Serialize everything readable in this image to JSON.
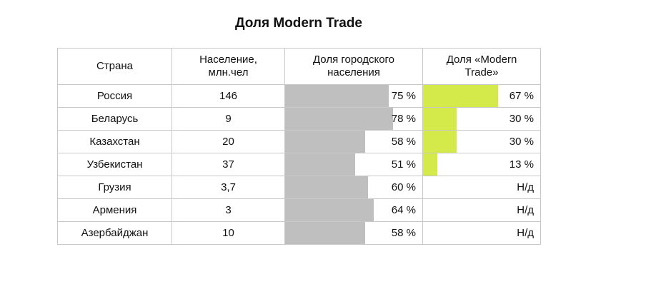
{
  "chart_data": {
    "type": "table",
    "title": "Доля Modern Trade",
    "columns": [
      "Страна",
      "Население, млн.чел",
      "Доля городского населения",
      "Доля «Modern Trade»"
    ],
    "rows": [
      {
        "country": "Россия",
        "population": "146",
        "urban": 75,
        "modern_trade": 67
      },
      {
        "country": "Беларусь",
        "population": "9",
        "urban": 78,
        "modern_trade": 30
      },
      {
        "country": "Казахстан",
        "population": "20",
        "urban": 58,
        "modern_trade": 30
      },
      {
        "country": "Узбекистан",
        "population": "37",
        "urban": 51,
        "modern_trade": 13
      },
      {
        "country": "Грузия",
        "population": "3,7",
        "urban": 60,
        "modern_trade": null
      },
      {
        "country": "Армения",
        "population": "3",
        "urban": 64,
        "modern_trade": null
      },
      {
        "country": "Азербайджан",
        "population": "10",
        "urban": 58,
        "modern_trade": null
      }
    ],
    "na_label": "Н/д",
    "percent_suffix": " %",
    "colors": {
      "urban_bar": "#bfbfbf",
      "modern_trade_bar": "#d4ea4a"
    }
  }
}
